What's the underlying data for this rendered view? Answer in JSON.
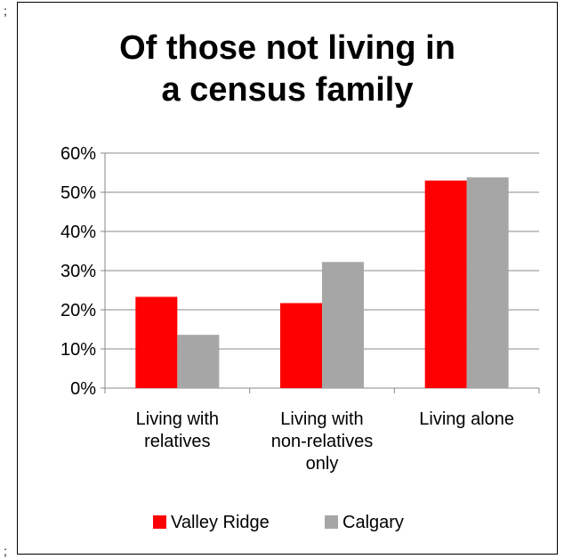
{
  "chart_data": {
    "type": "bar",
    "title_lines": [
      "Of those not living in",
      "a census family"
    ],
    "categories": [
      [
        "Living with",
        "relatives"
      ],
      [
        "Living with",
        "non-relatives",
        "only"
      ],
      [
        "Living alone"
      ]
    ],
    "series": [
      {
        "name": "Valley Ridge",
        "color": "#ff0000",
        "values": [
          23.3,
          21.7,
          53.0
        ]
      },
      {
        "name": "Calgary",
        "color": "#a6a6a6",
        "values": [
          13.6,
          32.2,
          53.8
        ]
      }
    ],
    "ylim": [
      0,
      60
    ],
    "yticks": [
      "0%",
      "10%",
      "20%",
      "30%",
      "40%",
      "50%",
      "60%"
    ],
    "y_unit": "percent",
    "grid": true,
    "legend_position": "bottom"
  }
}
